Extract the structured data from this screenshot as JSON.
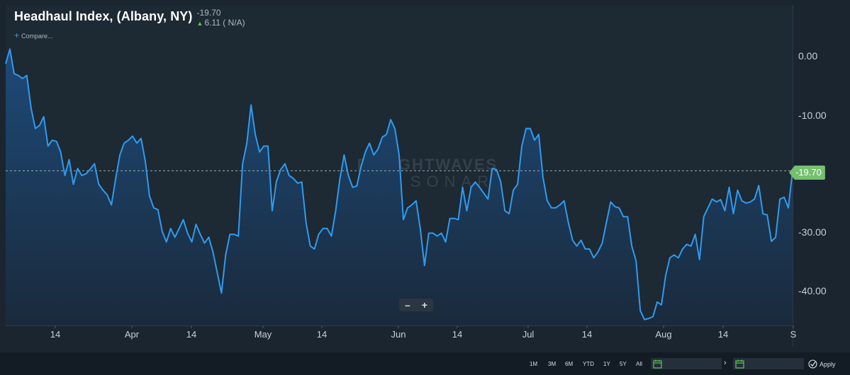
{
  "header": {
    "title": "Headhaul Index, (Albany, NY)",
    "last_value": "-19.70",
    "change": "6.11 ( N/A)",
    "compare_label": "Compare..."
  },
  "watermark": {
    "line1": "FREIGHTWAVES",
    "line2": "SONAR"
  },
  "zoom": {
    "minus": "–",
    "plus": "+"
  },
  "yaxis": {
    "ticks": [
      "0.00",
      "-10.00",
      "-30.00",
      "-40.00"
    ],
    "tick_values": [
      0,
      -10,
      -30,
      -40
    ]
  },
  "last_tag": "-19.70",
  "xaxis": {
    "ticks": [
      "14",
      "Apr",
      "14",
      "May",
      "14",
      "Jun",
      "14",
      "Jul",
      "14",
      "Aug",
      "14",
      "S"
    ]
  },
  "range_buttons": [
    "1M",
    "3M",
    "6M",
    "YTD",
    "1Y",
    "5Y",
    "All"
  ],
  "apply_label": "Apply",
  "colors": {
    "line": "#2f9bf0",
    "area_top": "#1d4a78",
    "area_bottom": "#1a2a3c",
    "last_tag": "#74c06e",
    "up_arrow": "#5ec452"
  },
  "chart_data": {
    "type": "area",
    "series": [
      {
        "values": [
          -1.5,
          1,
          -3.2,
          -3.5,
          -4,
          -3.5,
          -9,
          -12.5,
          -12,
          -10.5,
          -15.5,
          -14.5,
          -14.7,
          -16.5,
          -20.5,
          -17.8,
          -22,
          -19.3,
          -20.5,
          -20.2,
          -19.4,
          -18.5,
          -22,
          -23,
          -23.8,
          -25.5,
          -21,
          -17,
          -15,
          -14.5,
          -13.8,
          -15,
          -14.2,
          -18,
          -24,
          -26,
          -26.3,
          -30,
          -31.8,
          -29.5,
          -31,
          -29.5,
          -28,
          -30.3,
          -31.8,
          -28.8,
          -30.5,
          -32,
          -31,
          -33.5,
          -37,
          -40.5,
          -34,
          -30.5,
          -30.5,
          -30.8,
          -18.5,
          -15,
          -8.5,
          -13.5,
          -16.5,
          -15.5,
          -15.5,
          -26.5,
          -21.5,
          -19.5,
          -18.5,
          -20.5,
          -21,
          -21.8,
          -21.6,
          -28.5,
          -32.5,
          -33,
          -30.5,
          -29.5,
          -29.5,
          -30.8,
          -26.5,
          -21,
          -17,
          -20.5,
          -22.5,
          -22.3,
          -19,
          -16.5,
          -15,
          -17,
          -16,
          -14,
          -13.5,
          -11,
          -12.5,
          -17,
          -28,
          -26,
          -25.5,
          -24.8,
          -29.5,
          -35.8,
          -30.3,
          -30.3,
          -30.8,
          -30.3,
          -31.8,
          -27.8,
          -27.8,
          -28,
          -22.5,
          -26.5,
          -22.5,
          -21.6,
          -22.5,
          -23.5,
          -24.5,
          -19.3,
          -19.5,
          -21.5,
          -26.5,
          -27,
          -23,
          -22,
          -15.5,
          -12.5,
          -12.5,
          -14.5,
          -13.5,
          -20.8,
          -24.8,
          -26,
          -26,
          -25.5,
          -24.8,
          -28.5,
          -31.5,
          -32.5,
          -31.5,
          -33,
          -33,
          -34.5,
          -33.5,
          -32,
          -28.5,
          -25,
          -25.8,
          -26,
          -27.5,
          -27.5,
          -32.5,
          -35,
          -43.5,
          -45,
          -44.8,
          -44.5,
          -42,
          -42.5,
          -37.5,
          -34.5,
          -34,
          -34.5,
          -33,
          -32.2,
          -32.5,
          -30.5,
          -34.8,
          -27.5,
          -26,
          -24.5,
          -25,
          -24.6,
          -26.5,
          -22.5,
          -27,
          -23,
          -24.8,
          -25.2,
          -25,
          -24.5,
          -22.2,
          -27,
          -27.2,
          -31.7,
          -31,
          -24.5,
          -24.2,
          -26,
          -19.7
        ]
      }
    ],
    "xaxis_ticks": [
      "14",
      "Apr",
      "14",
      "May",
      "14",
      "Jun",
      "14",
      "Jul",
      "14",
      "Aug",
      "14",
      "S"
    ],
    "yaxis_ticks": [
      0,
      -10,
      -30,
      -40
    ],
    "ylim": [
      -46,
      8.5
    ],
    "reference_line": -19.7,
    "legend": "none",
    "grid": false
  }
}
